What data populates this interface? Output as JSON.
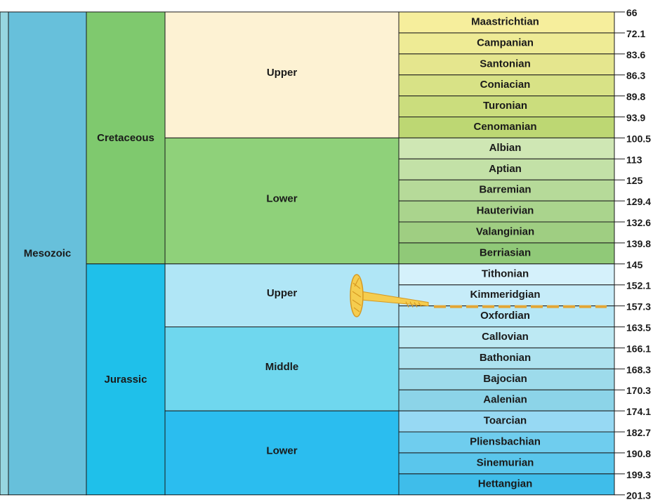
{
  "colors": {
    "eonStrip": "#97d6e0",
    "mesozoic": "#67c0db",
    "cretaceous": "#7fc96e",
    "jurassic": "#1fc0ea",
    "upperCretaceous": "#fdf2d3",
    "lowerCretaceous": "#8fd17a",
    "upperJurassic": "#b0e6f6",
    "middleJurassic": "#6fd7ee",
    "lowerJurassic": "#2bbdef",
    "marker": "#f5cd4f",
    "markerStroke": "#d69a22",
    "dash": "#e3a635",
    "line": "#1a1a1a"
  },
  "era": {
    "name": "Mesozoic",
    "start": 66,
    "end": 201.3
  },
  "periods": [
    {
      "name": "Cretaceous",
      "start": 66,
      "end": 145,
      "color": "#7fc96e"
    },
    {
      "name": "Jurassic",
      "start": 145,
      "end": 201.3,
      "color": "#1fc0ea"
    }
  ],
  "epochs": [
    {
      "name": "Upper",
      "start": 66,
      "end": 100.5,
      "color": "#fdf2d3"
    },
    {
      "name": "Lower",
      "start": 100.5,
      "end": 145,
      "color": "#8fd17a"
    },
    {
      "name": "Upper",
      "start": 145,
      "end": 163.5,
      "color": "#b0e6f6"
    },
    {
      "name": "Middle",
      "start": 163.5,
      "end": 174.1,
      "color": "#6fd7ee"
    },
    {
      "name": "Lower",
      "start": 174.1,
      "end": 201.3,
      "color": "#2bbdef"
    }
  ],
  "stages": [
    {
      "name": "Maastrichtian",
      "color": "#f6ee9c"
    },
    {
      "name": "Campanian",
      "color": "#eeeb95"
    },
    {
      "name": "Santonian",
      "color": "#e5e68e"
    },
    {
      "name": "Coniacian",
      "color": "#d8e286"
    },
    {
      "name": "Turonian",
      "color": "#cbdd7d"
    },
    {
      "name": "Cenomanian",
      "color": "#bdd773"
    },
    {
      "name": "Albian",
      "color": "#cfe7b4"
    },
    {
      "name": "Aptian",
      "color": "#c3e1a7"
    },
    {
      "name": "Barremian",
      "color": "#b6da99"
    },
    {
      "name": "Hauterivian",
      "color": "#aad48d"
    },
    {
      "name": "Valanginian",
      "color": "#9fce82"
    },
    {
      "name": "Berriasian",
      "color": "#90c978"
    },
    {
      "name": "Tithonian",
      "color": "#d5f1fb"
    },
    {
      "name": "Kimmeridgian",
      "color": "#c6ecf9"
    },
    {
      "name": "Oxfordian",
      "color": "#b6e7f6"
    },
    {
      "name": "Callovian",
      "color": "#bde9f3"
    },
    {
      "name": "Bathonian",
      "color": "#ade2ef"
    },
    {
      "name": "Bajocian",
      "color": "#9ddbeb"
    },
    {
      "name": "Aalenian",
      "color": "#8cd4e8"
    },
    {
      "name": "Toarcian",
      "color": "#97d9f3"
    },
    {
      "name": "Pliensbachian",
      "color": "#6fcdee"
    },
    {
      "name": "Sinemurian",
      "color": "#5ac6ec"
    },
    {
      "name": "Hettangian",
      "color": "#3fbdea"
    }
  ],
  "ages": [
    "66",
    "72.1",
    "83.6",
    "86.3",
    "89.8",
    "93.9",
    "100.5",
    "113",
    "125",
    "129.4",
    "132.6",
    "139.8",
    "145",
    "152.1",
    "157.3",
    "163.5",
    "166.1",
    "168.3",
    "170.3",
    "174.1",
    "182.7",
    "190.8",
    "199.3",
    "201.3"
  ],
  "marker": {
    "age": 157.3,
    "label": "157.3"
  }
}
